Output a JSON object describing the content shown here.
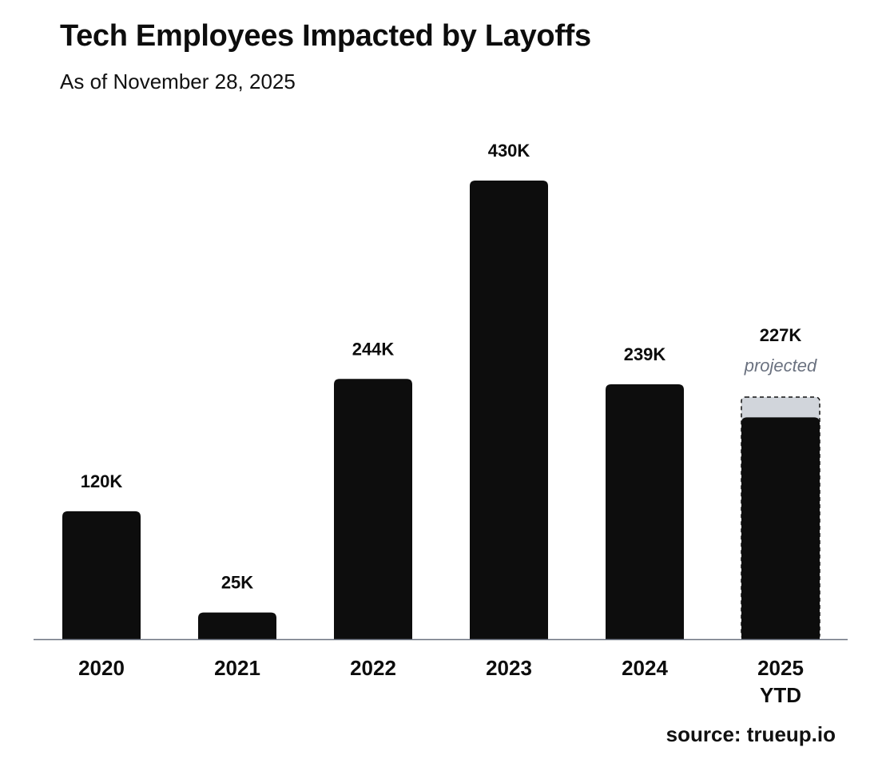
{
  "header": {
    "title": "Tech Employees Impacted by Layoffs",
    "subtitle": "As of November 28, 2025"
  },
  "footer": {
    "source": "source: trueup.io"
  },
  "colors": {
    "bar": "#0d0d0d",
    "projected": "#d1d5db",
    "axis": "#6b7280",
    "projected_label": "#6b7280"
  },
  "chart_data": {
    "type": "bar",
    "title": "Tech Employees Impacted by Layoffs",
    "subtitle": "As of November 28, 2025",
    "xlabel": "",
    "ylabel": "",
    "ylim": [
      0,
      450
    ],
    "units": "thousands",
    "grid": false,
    "categories": [
      {
        "line1": "2020",
        "line2": ""
      },
      {
        "line1": "2021",
        "line2": ""
      },
      {
        "line1": "2022",
        "line2": ""
      },
      {
        "line1": "2023",
        "line2": ""
      },
      {
        "line1": "2024",
        "line2": ""
      },
      {
        "line1": "2025",
        "line2": "YTD"
      }
    ],
    "values": [
      120,
      25,
      244,
      430,
      239,
      208
    ],
    "projected": [
      null,
      null,
      null,
      null,
      null,
      227
    ],
    "labels": [
      "120K",
      "25K",
      "244K",
      "430K",
      "239K",
      "227K"
    ],
    "projected_note": "projected"
  }
}
